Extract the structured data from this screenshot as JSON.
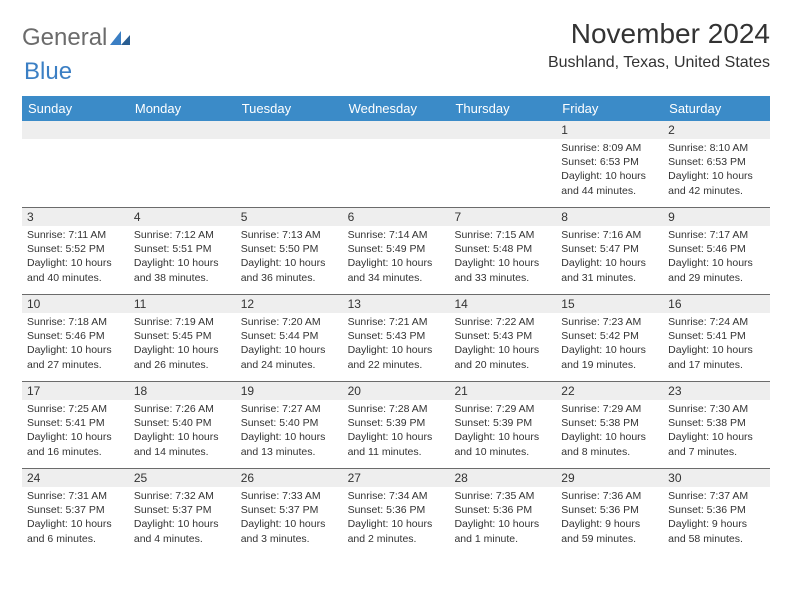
{
  "logo": {
    "part1": "General",
    "part2": "Blue"
  },
  "title": "November 2024",
  "location": "Bushland, Texas, United States",
  "colors": {
    "header_bg": "#3b8bc8",
    "header_text": "#ffffff",
    "daynum_bg": "#eeeeee",
    "rule": "#6b6b6b",
    "logo_gray": "#6b6b6b",
    "logo_blue": "#3b7fc4"
  },
  "day_names": [
    "Sunday",
    "Monday",
    "Tuesday",
    "Wednesday",
    "Thursday",
    "Friday",
    "Saturday"
  ],
  "weeks": [
    [
      {
        "n": "",
        "sr": "",
        "ss": "",
        "dl": ""
      },
      {
        "n": "",
        "sr": "",
        "ss": "",
        "dl": ""
      },
      {
        "n": "",
        "sr": "",
        "ss": "",
        "dl": ""
      },
      {
        "n": "",
        "sr": "",
        "ss": "",
        "dl": ""
      },
      {
        "n": "",
        "sr": "",
        "ss": "",
        "dl": ""
      },
      {
        "n": "1",
        "sr": "Sunrise: 8:09 AM",
        "ss": "Sunset: 6:53 PM",
        "dl": "Daylight: 10 hours and 44 minutes."
      },
      {
        "n": "2",
        "sr": "Sunrise: 8:10 AM",
        "ss": "Sunset: 6:53 PM",
        "dl": "Daylight: 10 hours and 42 minutes."
      }
    ],
    [
      {
        "n": "3",
        "sr": "Sunrise: 7:11 AM",
        "ss": "Sunset: 5:52 PM",
        "dl": "Daylight: 10 hours and 40 minutes."
      },
      {
        "n": "4",
        "sr": "Sunrise: 7:12 AM",
        "ss": "Sunset: 5:51 PM",
        "dl": "Daylight: 10 hours and 38 minutes."
      },
      {
        "n": "5",
        "sr": "Sunrise: 7:13 AM",
        "ss": "Sunset: 5:50 PM",
        "dl": "Daylight: 10 hours and 36 minutes."
      },
      {
        "n": "6",
        "sr": "Sunrise: 7:14 AM",
        "ss": "Sunset: 5:49 PM",
        "dl": "Daylight: 10 hours and 34 minutes."
      },
      {
        "n": "7",
        "sr": "Sunrise: 7:15 AM",
        "ss": "Sunset: 5:48 PM",
        "dl": "Daylight: 10 hours and 33 minutes."
      },
      {
        "n": "8",
        "sr": "Sunrise: 7:16 AM",
        "ss": "Sunset: 5:47 PM",
        "dl": "Daylight: 10 hours and 31 minutes."
      },
      {
        "n": "9",
        "sr": "Sunrise: 7:17 AM",
        "ss": "Sunset: 5:46 PM",
        "dl": "Daylight: 10 hours and 29 minutes."
      }
    ],
    [
      {
        "n": "10",
        "sr": "Sunrise: 7:18 AM",
        "ss": "Sunset: 5:46 PM",
        "dl": "Daylight: 10 hours and 27 minutes."
      },
      {
        "n": "11",
        "sr": "Sunrise: 7:19 AM",
        "ss": "Sunset: 5:45 PM",
        "dl": "Daylight: 10 hours and 26 minutes."
      },
      {
        "n": "12",
        "sr": "Sunrise: 7:20 AM",
        "ss": "Sunset: 5:44 PM",
        "dl": "Daylight: 10 hours and 24 minutes."
      },
      {
        "n": "13",
        "sr": "Sunrise: 7:21 AM",
        "ss": "Sunset: 5:43 PM",
        "dl": "Daylight: 10 hours and 22 minutes."
      },
      {
        "n": "14",
        "sr": "Sunrise: 7:22 AM",
        "ss": "Sunset: 5:43 PM",
        "dl": "Daylight: 10 hours and 20 minutes."
      },
      {
        "n": "15",
        "sr": "Sunrise: 7:23 AM",
        "ss": "Sunset: 5:42 PM",
        "dl": "Daylight: 10 hours and 19 minutes."
      },
      {
        "n": "16",
        "sr": "Sunrise: 7:24 AM",
        "ss": "Sunset: 5:41 PM",
        "dl": "Daylight: 10 hours and 17 minutes."
      }
    ],
    [
      {
        "n": "17",
        "sr": "Sunrise: 7:25 AM",
        "ss": "Sunset: 5:41 PM",
        "dl": "Daylight: 10 hours and 16 minutes."
      },
      {
        "n": "18",
        "sr": "Sunrise: 7:26 AM",
        "ss": "Sunset: 5:40 PM",
        "dl": "Daylight: 10 hours and 14 minutes."
      },
      {
        "n": "19",
        "sr": "Sunrise: 7:27 AM",
        "ss": "Sunset: 5:40 PM",
        "dl": "Daylight: 10 hours and 13 minutes."
      },
      {
        "n": "20",
        "sr": "Sunrise: 7:28 AM",
        "ss": "Sunset: 5:39 PM",
        "dl": "Daylight: 10 hours and 11 minutes."
      },
      {
        "n": "21",
        "sr": "Sunrise: 7:29 AM",
        "ss": "Sunset: 5:39 PM",
        "dl": "Daylight: 10 hours and 10 minutes."
      },
      {
        "n": "22",
        "sr": "Sunrise: 7:29 AM",
        "ss": "Sunset: 5:38 PM",
        "dl": "Daylight: 10 hours and 8 minutes."
      },
      {
        "n": "23",
        "sr": "Sunrise: 7:30 AM",
        "ss": "Sunset: 5:38 PM",
        "dl": "Daylight: 10 hours and 7 minutes."
      }
    ],
    [
      {
        "n": "24",
        "sr": "Sunrise: 7:31 AM",
        "ss": "Sunset: 5:37 PM",
        "dl": "Daylight: 10 hours and 6 minutes."
      },
      {
        "n": "25",
        "sr": "Sunrise: 7:32 AM",
        "ss": "Sunset: 5:37 PM",
        "dl": "Daylight: 10 hours and 4 minutes."
      },
      {
        "n": "26",
        "sr": "Sunrise: 7:33 AM",
        "ss": "Sunset: 5:37 PM",
        "dl": "Daylight: 10 hours and 3 minutes."
      },
      {
        "n": "27",
        "sr": "Sunrise: 7:34 AM",
        "ss": "Sunset: 5:36 PM",
        "dl": "Daylight: 10 hours and 2 minutes."
      },
      {
        "n": "28",
        "sr": "Sunrise: 7:35 AM",
        "ss": "Sunset: 5:36 PM",
        "dl": "Daylight: 10 hours and 1 minute."
      },
      {
        "n": "29",
        "sr": "Sunrise: 7:36 AM",
        "ss": "Sunset: 5:36 PM",
        "dl": "Daylight: 9 hours and 59 minutes."
      },
      {
        "n": "30",
        "sr": "Sunrise: 7:37 AM",
        "ss": "Sunset: 5:36 PM",
        "dl": "Daylight: 9 hours and 58 minutes."
      }
    ]
  ]
}
